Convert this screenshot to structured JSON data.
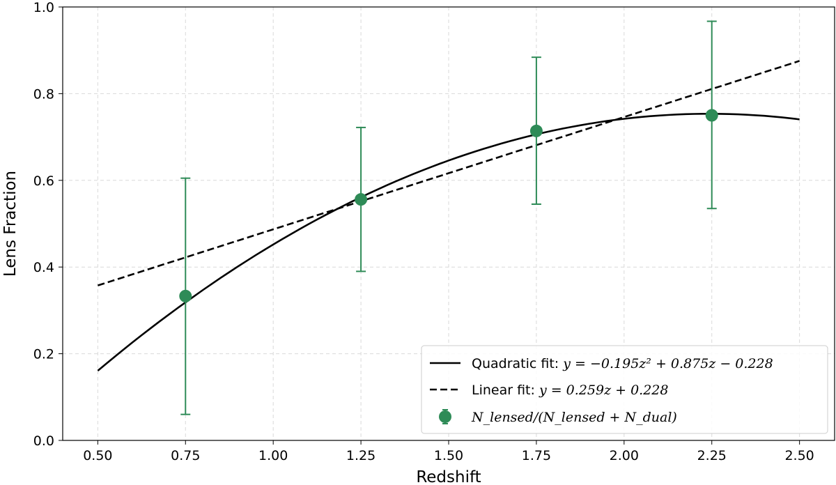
{
  "chart_data": {
    "type": "scatter",
    "title": "",
    "xlabel": "Redshift",
    "ylabel": "Lens Fraction",
    "xlim": [
      0.4,
      2.6
    ],
    "ylim": [
      0.0,
      1.0
    ],
    "xticks": [
      "0.50",
      "0.75",
      "1.00",
      "1.25",
      "1.50",
      "1.75",
      "2.00",
      "2.25",
      "2.50"
    ],
    "yticks": [
      "0.0",
      "0.2",
      "0.4",
      "0.6",
      "0.8",
      "1.0"
    ],
    "grid": true,
    "legend_position": "lower-right",
    "data_points": {
      "name": "N_lensed/(N_lensed + N_dual)",
      "color": "#2e8b57",
      "x": [
        0.75,
        1.25,
        1.75,
        2.25
      ],
      "y": [
        0.333,
        0.556,
        0.714,
        0.75
      ],
      "yerr_low": [
        0.06,
        0.39,
        0.545,
        0.535
      ],
      "yerr_high": [
        0.605,
        0.722,
        0.884,
        0.967
      ]
    },
    "fits": [
      {
        "name": "Quadratic fit",
        "style": "solid",
        "color": "#000000",
        "equation_prefix": "y = ",
        "coefficients": [
          -0.195,
          0.875,
          -0.228
        ],
        "x_range": [
          0.5,
          2.5
        ]
      },
      {
        "name": "Linear fit",
        "style": "dashed",
        "color": "#000000",
        "equation_prefix": "y = ",
        "coefficients": [
          0.259,
          0.228
        ],
        "x_range": [
          0.5,
          2.5
        ]
      }
    ],
    "legend": {
      "quadratic_label": "Quadratic fit: ",
      "quadratic_eq": "y = −0.195z² + 0.875z − 0.228",
      "linear_label": "Linear fit: ",
      "linear_eq": "y = 0.259z + 0.228",
      "points_label": "N_lensed/(N_lensed + N_dual)"
    }
  }
}
